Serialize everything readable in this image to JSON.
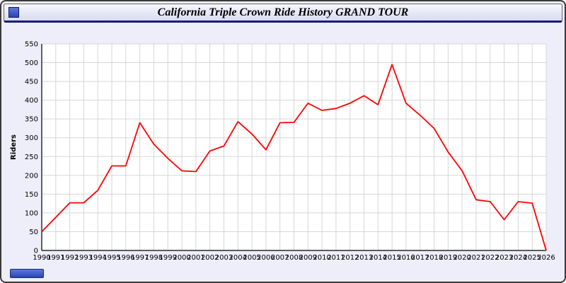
{
  "header": {
    "title": "California Triple Crown Ride History GRAND TOUR"
  },
  "colors": {
    "page_bg": "#edeef9",
    "plot_bg": "#ffffff",
    "grid": "#d6d6d6",
    "axis": "#000000",
    "line": "#ff0000",
    "titlebar_underline": "#1b1b78",
    "icon_blue": "#3757c8"
  },
  "chart_data": {
    "type": "line",
    "title": "California Triple Crown Ride History GRAND TOUR",
    "xlabel": "",
    "ylabel": "Riders",
    "ylim": [
      0,
      550
    ],
    "y_tick_step": 50,
    "grid": true,
    "legend": "none",
    "line_color": "#ff0000",
    "categories": [
      "1990",
      "1991",
      "1992",
      "1993",
      "1994",
      "1995",
      "1996",
      "1997",
      "1998",
      "1999",
      "2000",
      "2001",
      "2002",
      "2003",
      "2004",
      "2005",
      "2006",
      "2007",
      "2008",
      "2009",
      "2010",
      "2011",
      "2012",
      "2013",
      "2014",
      "2015",
      "2016",
      "2017",
      "2018",
      "2019",
      "2020",
      "2021",
      "2022",
      "2023",
      "2024",
      "2025",
      "2026"
    ],
    "values": [
      50,
      88,
      127,
      127,
      160,
      225,
      225,
      340,
      283,
      245,
      212,
      210,
      265,
      278,
      343,
      310,
      268,
      340,
      341,
      392,
      373,
      378,
      392,
      412,
      388,
      495,
      392,
      360,
      325,
      262,
      212,
      135,
      130,
      82,
      130,
      126,
      0
    ]
  }
}
